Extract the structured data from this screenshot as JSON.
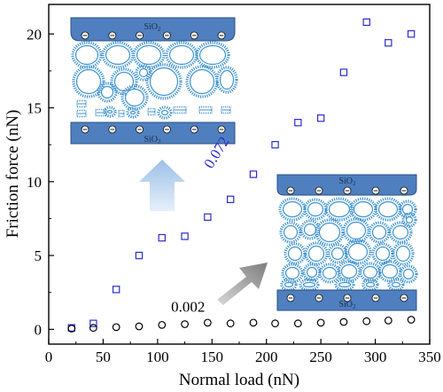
{
  "chart_data": {
    "type": "scatter",
    "xlabel": "Normal load (nN)",
    "ylabel": "Friction force (nN)",
    "xlim": [
      0,
      350
    ],
    "ylim": [
      -1,
      22
    ],
    "x_ticks": [
      0,
      50,
      100,
      150,
      200,
      250,
      300,
      350
    ],
    "y_ticks": [
      0,
      5,
      10,
      15,
      20
    ],
    "grid": false,
    "legend": "none",
    "series": [
      {
        "marker": "open-square",
        "color": "#2b2bd0",
        "x": [
          21,
          41,
          62,
          83,
          104,
          125,
          146,
          167,
          188,
          208,
          229,
          250,
          271,
          292,
          312,
          333
        ],
        "y": [
          0.1,
          0.4,
          2.7,
          5.0,
          6.2,
          6.3,
          7.6,
          8.8,
          10.5,
          12.5,
          14.0,
          14.3,
          17.4,
          20.8,
          19.4,
          20.0
        ]
      },
      {
        "marker": "open-circle",
        "color": "#000000",
        "x": [
          21,
          41,
          62,
          83,
          104,
          125,
          146,
          167,
          188,
          208,
          229,
          250,
          271,
          292,
          312,
          333
        ],
        "y": [
          0.05,
          0.1,
          0.15,
          0.2,
          0.3,
          0.35,
          0.45,
          0.4,
          0.45,
          0.4,
          0.4,
          0.45,
          0.5,
          0.55,
          0.6,
          0.65
        ]
      }
    ],
    "annotations": [
      {
        "text": "0.072",
        "color": "#2b2bd0",
        "x": 158,
        "y": 11.8,
        "rotation": -58
      },
      {
        "text": "0.002",
        "color": "#000000",
        "x": 128,
        "y": 1.2,
        "rotation": 0
      }
    ],
    "insets": [
      {
        "top_label": "SiO",
        "bottom_label": "SiO",
        "subscript": "2"
      },
      {
        "top_label": "SiO",
        "bottom_label": "SiO",
        "subscript": "2"
      }
    ],
    "colors": {
      "square_marker": "#2b2bd0",
      "circle_marker": "#000000",
      "plate_fill": "#4f7fbf",
      "micelle": "#3f92cf",
      "arrow_up": "#b8d2ef",
      "arrow_diag": "#8c8c8c"
    }
  }
}
